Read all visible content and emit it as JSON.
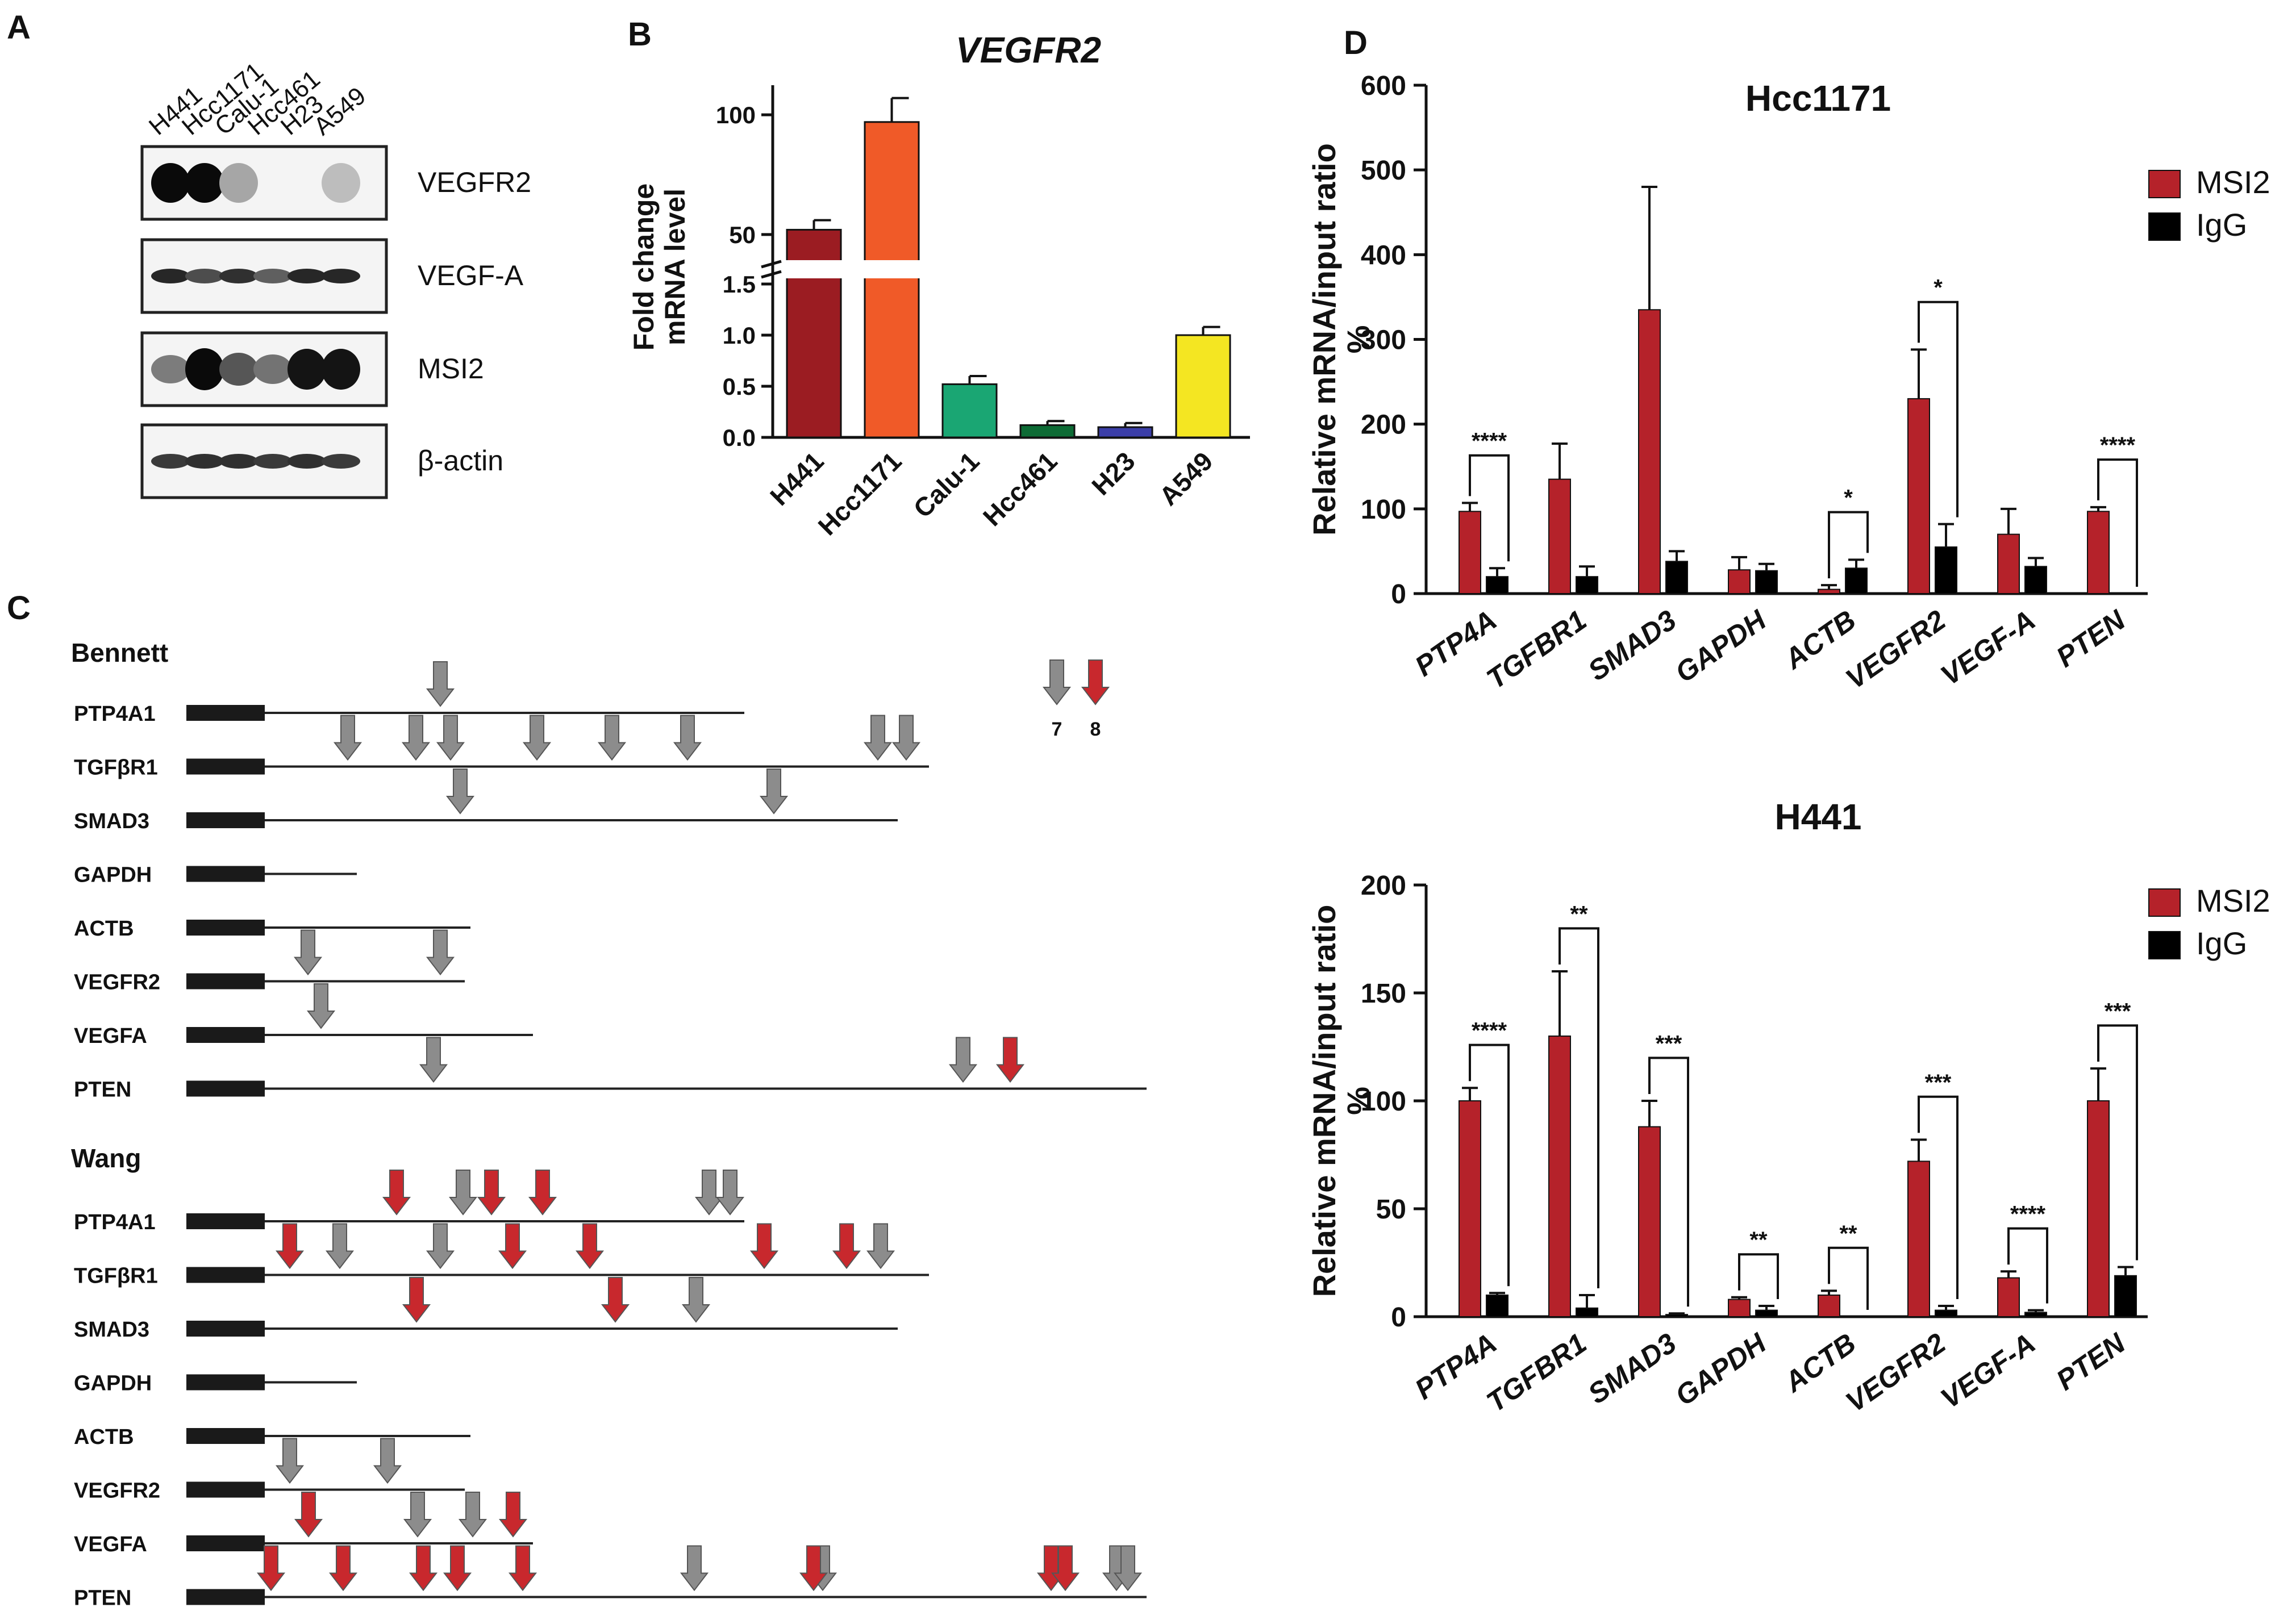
{
  "panels": {
    "A": "A",
    "B": "B",
    "C": "C",
    "D": "D"
  },
  "chart_data": [
    {
      "id": "A",
      "type": "table",
      "lanes": [
        "H441",
        "Hcc1171",
        "Calu-1",
        "Hcc461",
        "H23",
        "A549"
      ],
      "blots": [
        {
          "name": "VEGFR2",
          "intensity": [
            1.0,
            1.0,
            0.18,
            0.0,
            0.0,
            0.06
          ]
        },
        {
          "name": "VEGF-A",
          "intensity": [
            0.85,
            0.65,
            0.8,
            0.55,
            0.85,
            0.85
          ]
        },
        {
          "name": "MSI2",
          "intensity": [
            0.4,
            1.0,
            0.6,
            0.45,
            0.95,
            0.95
          ]
        },
        {
          "name": "β-actin",
          "intensity": [
            0.75,
            0.8,
            0.8,
            0.75,
            0.8,
            0.75
          ]
        }
      ]
    },
    {
      "id": "B",
      "type": "bar",
      "title": "VEGFR2",
      "ylabel": "Fold change\nmRNA level",
      "categories": [
        "H441",
        "Hcc1171",
        "Calu-1",
        "Hcc461",
        "H23",
        "A549"
      ],
      "values": [
        52,
        97,
        0.52,
        0.12,
        0.1,
        1.0
      ],
      "errors": [
        4,
        10,
        0.08,
        0.04,
        0.04,
        0.08
      ],
      "colors": [
        "#9b1c22",
        "#f05a28",
        "#1aa673",
        "#0d6b35",
        "#3b3ea8",
        "#f4e622"
      ],
      "y_lower_ticks": [
        "0.0",
        "0.5",
        "1.0",
        "1.5"
      ],
      "y_upper_ticks": [
        "50",
        "100"
      ],
      "ylim_lower": [
        0,
        1.5
      ],
      "ylim_upper": [
        40,
        110
      ]
    },
    {
      "id": "C",
      "type": "diagram",
      "groups": [
        {
          "name": "Bennett",
          "genes": [
            {
              "name": "PTP4A1",
              "length": 1,
              "gray": [
                3
              ],
              "red": [],
              "note": [
                {
                  "label": "7",
                  "color": "gray"
                },
                {
                  "label": "8",
                  "color": "red"
                }
              ]
            },
            {
              "name": "TGFβR1",
              "length": 1,
              "gray": [
                1,
                2,
                3,
                4,
                5,
                6,
                7,
                8
              ],
              "red": []
            },
            {
              "name": "SMAD3",
              "length": 1,
              "gray": [
                1,
                2
              ],
              "red": []
            },
            {
              "name": "GAPDH",
              "length": 1,
              "gray": [],
              "red": []
            },
            {
              "name": "ACTB",
              "length": 1,
              "gray": [],
              "red": []
            },
            {
              "name": "VEGFR2",
              "length": 1,
              "gray": [
                1,
                2
              ],
              "red": []
            },
            {
              "name": "VEGFA",
              "length": 1,
              "gray": [
                1
              ],
              "red": []
            },
            {
              "name": "PTEN",
              "length": 1,
              "gray": [
                1,
                2
              ],
              "red": [
                1
              ]
            }
          ]
        },
        {
          "name": "Wang",
          "genes": [
            {
              "name": "PTP4A1",
              "length": 1,
              "gray": [
                1,
                2,
                3
              ],
              "red": [
                1,
                2,
                3
              ]
            },
            {
              "name": "TGFβR1",
              "length": 1,
              "gray": [
                1,
                2,
                3
              ],
              "red": [
                1,
                2,
                3,
                4,
                5
              ]
            },
            {
              "name": "SMAD3",
              "length": 1,
              "gray": [
                1
              ],
              "red": [
                1,
                2
              ]
            },
            {
              "name": "GAPDH",
              "length": 1,
              "gray": [],
              "red": []
            },
            {
              "name": "ACTB",
              "length": 1,
              "gray": [],
              "red": []
            },
            {
              "name": "VEGFR2",
              "length": 1,
              "gray": [
                1,
                2
              ],
              "red": []
            },
            {
              "name": "VEGFA",
              "length": 1,
              "gray": [
                1,
                2
              ],
              "red": [
                1,
                2
              ]
            },
            {
              "name": "PTEN",
              "length": 1,
              "gray": [
                1,
                2,
                3,
                4
              ],
              "red": [
                1,
                2,
                3,
                4,
                5,
                6,
                7,
                8
              ]
            }
          ]
        }
      ]
    },
    {
      "id": "D1",
      "type": "bar",
      "title": "Hcc1171",
      "ylabel": "Relative mRNA/input ratio\n%",
      "categories": [
        "PTP4A",
        "TGFBR1",
        "SMAD3",
        "GAPDH",
        "ACTB",
        "VEGFR2",
        "VEGF-A",
        "PTEN"
      ],
      "ylim": [
        0,
        600
      ],
      "yticks": [
        0,
        100,
        200,
        300,
        400,
        500,
        600
      ],
      "series": [
        {
          "name": "MSI2",
          "color": "#b5222a",
          "values": [
            97,
            135,
            335,
            28,
            5,
            230,
            70,
            97
          ],
          "errors": [
            10,
            42,
            145,
            15,
            5,
            58,
            30,
            5
          ]
        },
        {
          "name": "IgG",
          "color": "#000000",
          "values": [
            20,
            20,
            38,
            27,
            30,
            55,
            32,
            0
          ],
          "errors": [
            10,
            12,
            12,
            8,
            10,
            27,
            10,
            0
          ]
        }
      ],
      "significance": [
        {
          "category": "PTP4A",
          "label": "****"
        },
        {
          "category": "ACTB",
          "label": "*"
        },
        {
          "category": "VEGFR2",
          "label": "*"
        },
        {
          "category": "PTEN",
          "label": "****"
        }
      ]
    },
    {
      "id": "D2",
      "type": "bar",
      "title": "H441",
      "ylabel": "Relative mRNA/input ratio\n%",
      "categories": [
        "PTP4A",
        "TGFBR1",
        "SMAD3",
        "GAPDH",
        "ACTB",
        "VEGFR2",
        "VEGF-A",
        "PTEN"
      ],
      "ylim": [
        0,
        200
      ],
      "yticks": [
        0,
        50,
        100,
        150,
        200
      ],
      "series": [
        {
          "name": "MSI2",
          "color": "#b5222a",
          "values": [
            100,
            130,
            88,
            8,
            10,
            72,
            18,
            100
          ],
          "errors": [
            6,
            30,
            12,
            1,
            2,
            10,
            3,
            15
          ]
        },
        {
          "name": "IgG",
          "color": "#000000",
          "values": [
            10,
            4,
            1,
            3,
            0,
            3,
            2,
            19
          ],
          "errors": [
            1,
            6,
            0.5,
            2,
            0,
            2,
            1,
            4
          ]
        }
      ],
      "significance": [
        {
          "category": "PTP4A",
          "label": "****"
        },
        {
          "category": "TGFBR1",
          "label": "**"
        },
        {
          "category": "SMAD3",
          "label": "***"
        },
        {
          "category": "GAPDH",
          "label": "**"
        },
        {
          "category": "ACTB",
          "label": "**"
        },
        {
          "category": "VEGFR2",
          "label": "***"
        },
        {
          "category": "VEGF-A",
          "label": "****"
        },
        {
          "category": "PTEN",
          "label": "***"
        }
      ]
    }
  ]
}
